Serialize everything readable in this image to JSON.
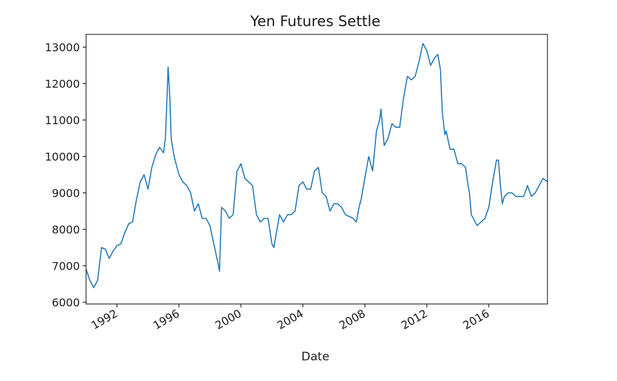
{
  "chart_data": {
    "type": "line",
    "title": "Yen Futures Settle",
    "xlabel": "Date",
    "ylabel": "",
    "xlim": [
      "1990-01-02",
      "2019-10-15"
    ],
    "ylim": [
      5950,
      13350
    ],
    "yticks": [
      6000,
      7000,
      8000,
      9000,
      10000,
      11000,
      12000,
      13000
    ],
    "xticks": [
      "1992",
      "1996",
      "2000",
      "2004",
      "2008",
      "2012",
      "2016"
    ],
    "grid": false,
    "series": [
      {
        "color": "#1f77b4",
        "x": [
          "1990-01-02",
          "1990-04-01",
          "1990-07-01",
          "1990-10-01",
          "1991-01-01",
          "1991-04-01",
          "1991-07-01",
          "1991-10-01",
          "1992-01-01",
          "1992-04-01",
          "1992-07-01",
          "1992-10-01",
          "1993-01-01",
          "1993-04-01",
          "1993-07-01",
          "1993-10-01",
          "1994-01-01",
          "1994-04-01",
          "1994-07-01",
          "1994-10-01",
          "1995-01-01",
          "1995-02-15",
          "1995-04-01",
          "1995-04-20",
          "1995-06-01",
          "1995-07-01",
          "1995-09-01",
          "1995-10-01",
          "1996-01-01",
          "1996-04-01",
          "1996-07-01",
          "1996-10-01",
          "1997-01-01",
          "1997-04-01",
          "1997-07-01",
          "1997-10-01",
          "1998-01-01",
          "1998-04-01",
          "1998-06-15",
          "1998-08-15",
          "1998-10-01",
          "1999-01-01",
          "1999-04-01",
          "1999-07-01",
          "1999-10-01",
          "2000-01-01",
          "2000-04-01",
          "2000-07-01",
          "2000-10-01",
          "2001-01-01",
          "2001-04-01",
          "2001-07-01",
          "2001-10-01",
          "2002-01-01",
          "2002-02-15",
          "2002-04-01",
          "2002-07-01",
          "2002-10-01",
          "2003-01-01",
          "2003-04-01",
          "2003-07-01",
          "2003-10-01",
          "2004-01-01",
          "2004-04-01",
          "2004-07-01",
          "2004-10-01",
          "2005-01-01",
          "2005-04-01",
          "2005-07-01",
          "2005-10-01",
          "2006-01-01",
          "2006-04-01",
          "2006-07-01",
          "2006-10-01",
          "2007-01-01",
          "2007-04-01",
          "2007-06-15",
          "2007-08-15",
          "2007-10-01",
          "2008-01-01",
          "2008-04-01",
          "2008-07-01",
          "2008-10-01",
          "2008-12-15",
          "2009-01-15",
          "2009-04-01",
          "2009-07-01",
          "2009-10-01",
          "2010-01-01",
          "2010-04-01",
          "2010-07-01",
          "2010-10-01",
          "2011-01-01",
          "2011-04-01",
          "2011-07-01",
          "2011-10-01",
          "2012-01-01",
          "2012-04-01",
          "2012-07-01",
          "2012-09-15",
          "2012-10-15",
          "2012-11-15",
          "2013-01-01",
          "2013-03-01",
          "2013-04-01",
          "2013-07-01",
          "2013-10-01",
          "2014-01-01",
          "2014-04-01",
          "2014-07-01",
          "2014-09-01",
          "2014-10-01",
          "2014-11-15",
          "2015-01-01",
          "2015-04-01",
          "2015-07-01",
          "2015-10-01",
          "2016-01-01",
          "2016-04-01",
          "2016-07-01",
          "2016-08-15",
          "2016-10-01",
          "2016-11-15",
          "2017-01-01",
          "2017-04-01",
          "2017-07-01",
          "2017-10-01",
          "2018-01-01",
          "2018-04-01",
          "2018-07-01",
          "2018-10-01",
          "2019-01-01",
          "2019-04-01",
          "2019-07-01",
          "2019-10-15"
        ],
        "y": [
          6900,
          6600,
          6400,
          6600,
          7500,
          7450,
          7200,
          7400,
          7550,
          7600,
          7900,
          8150,
          8200,
          8800,
          9300,
          9500,
          9100,
          9700,
          10050,
          10250,
          10100,
          10500,
          11800,
          12450,
          11600,
          10500,
          10050,
          9900,
          9500,
          9300,
          9200,
          9000,
          8500,
          8700,
          8300,
          8300,
          8100,
          7600,
          7200,
          6850,
          8600,
          8500,
          8300,
          8400,
          9600,
          9800,
          9400,
          9300,
          9200,
          8400,
          8200,
          8300,
          8300,
          7600,
          7500,
          7800,
          8400,
          8200,
          8400,
          8400,
          8500,
          9200,
          9300,
          9100,
          9100,
          9600,
          9700,
          9000,
          8900,
          8500,
          8700,
          8700,
          8600,
          8400,
          8350,
          8300,
          8200,
          8600,
          8800,
          9400,
          10000,
          9600,
          10700,
          11000,
          11300,
          10300,
          10500,
          10900,
          10800,
          10800,
          11600,
          12200,
          12100,
          12200,
          12600,
          13100,
          12900,
          12500,
          12700,
          12800,
          12600,
          12400,
          11200,
          10600,
          10700,
          10200,
          10200,
          9800,
          9800,
          9700,
          9200,
          9000,
          8400,
          8300,
          8100,
          8200,
          8300,
          8600,
          9300,
          9900,
          9900,
          9200,
          8700,
          8900,
          9000,
          9000,
          8900,
          8900,
          8900,
          9200,
          8900,
          9000,
          9200,
          9400,
          9300
        ]
      }
    ]
  }
}
